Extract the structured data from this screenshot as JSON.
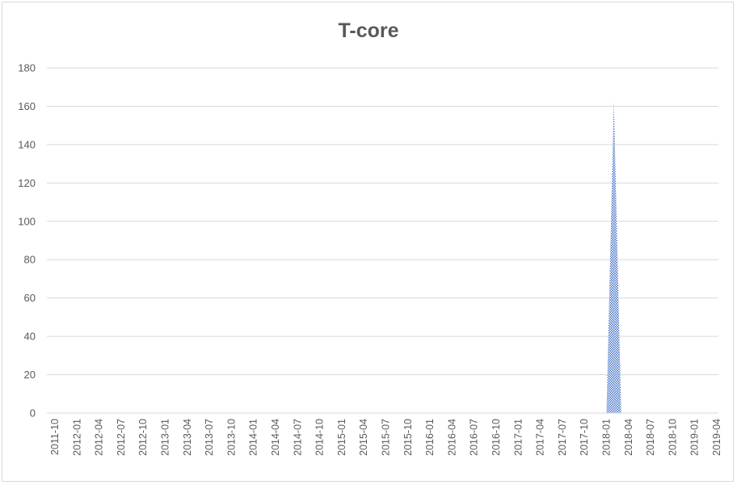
{
  "chart_data": {
    "type": "area",
    "title": "T-core",
    "xlabel": "",
    "ylabel": "",
    "ylim": [
      0,
      180
    ],
    "yticks": [
      0,
      20,
      40,
      60,
      80,
      100,
      120,
      140,
      160,
      180
    ],
    "grid": true,
    "legend": "none",
    "color": "#4472c4",
    "x_tick_labels": [
      "2011-10",
      "2012-01",
      "2012-04",
      "2012-07",
      "2012-10",
      "2013-01",
      "2013-04",
      "2013-07",
      "2013-10",
      "2014-01",
      "2014-04",
      "2014-07",
      "2014-10",
      "2015-01",
      "2015-04",
      "2015-07",
      "2015-10",
      "2016-01",
      "2016-04",
      "2016-07",
      "2016-10",
      "2017-01",
      "2017-04",
      "2017-07",
      "2017-10",
      "2018-01",
      "2018-04",
      "2018-07",
      "2018-10",
      "2019-01",
      "2019-04"
    ],
    "points": [
      {
        "x": "2011-10",
        "y": 0
      },
      {
        "x": "2018-01",
        "y": 0
      },
      {
        "x": "2018-02",
        "y": 163
      },
      {
        "x": "2018-03",
        "y": 0
      },
      {
        "x": "2019-06",
        "y": 0
      }
    ]
  }
}
